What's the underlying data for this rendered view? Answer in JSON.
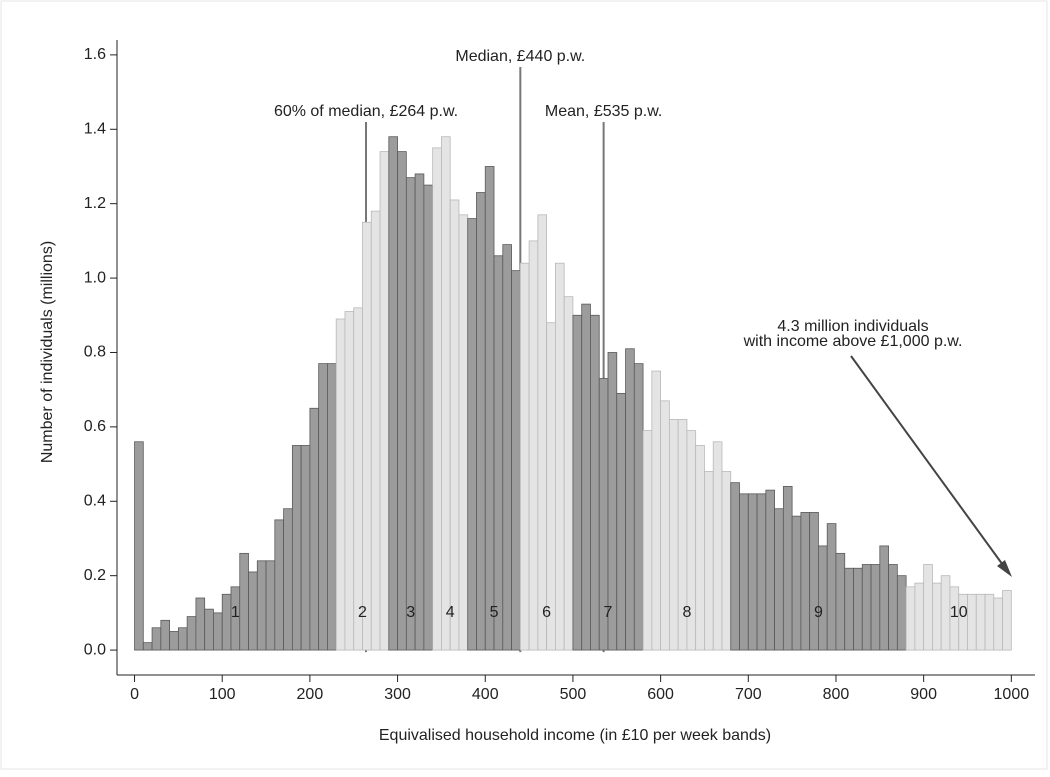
{
  "chart_data": {
    "type": "histogram",
    "x_label": "Equivalised household income (in £10 per week bands)",
    "y_label": "Number of individuals (millions)",
    "bins": [
      0,
      10,
      20,
      30,
      40,
      50,
      60,
      70,
      80,
      90,
      100,
      110,
      120,
      130,
      140,
      150,
      160,
      170,
      180,
      190,
      200,
      210,
      220,
      230,
      240,
      250,
      260,
      270,
      280,
      290,
      300,
      310,
      320,
      330,
      340,
      350,
      360,
      370,
      380,
      390,
      400,
      410,
      420,
      430,
      440,
      450,
      460,
      470,
      480,
      490,
      500,
      510,
      520,
      530,
      540,
      550,
      560,
      570,
      580,
      590,
      600,
      610,
      620,
      630,
      640,
      650,
      660,
      670,
      680,
      690,
      700,
      710,
      720,
      730,
      740,
      750,
      760,
      770,
      780,
      790,
      800,
      810,
      820,
      830,
      840,
      850,
      860,
      870,
      880,
      890,
      900,
      910,
      920,
      930,
      940,
      950,
      960,
      970,
      980,
      990,
      1000
    ],
    "counts": [
      0.56,
      0.02,
      0.06,
      0.08,
      0.05,
      0.06,
      0.09,
      0.14,
      0.11,
      0.1,
      0.15,
      0.17,
      0.26,
      0.21,
      0.24,
      0.24,
      0.35,
      0.38,
      0.55,
      0.55,
      0.65,
      0.77,
      0.77,
      0.89,
      0.91,
      0.92,
      1.15,
      1.18,
      1.34,
      1.38,
      1.34,
      1.27,
      1.28,
      1.25,
      1.35,
      1.38,
      1.21,
      1.17,
      1.16,
      1.23,
      1.3,
      1.06,
      1.09,
      1.02,
      1.04,
      1.1,
      1.17,
      0.88,
      1.04,
      0.95,
      0.9,
      0.93,
      0.9,
      0.73,
      0.8,
      0.69,
      0.81,
      0.77,
      0.59,
      0.75,
      0.67,
      0.62,
      0.62,
      0.59,
      0.55,
      0.48,
      0.56,
      0.48,
      0.45,
      0.42,
      0.42,
      0.42,
      0.43,
      0.38,
      0.44,
      0.36,
      0.37,
      0.37,
      0.28,
      0.34,
      0.26,
      0.22,
      0.22,
      0.23,
      0.23,
      0.28,
      0.23,
      0.2,
      0.17,
      0.18,
      0.23,
      0.18,
      0.2,
      0.17,
      0.15,
      0.15,
      0.15,
      0.15,
      0.14,
      0.16
    ],
    "bar_colors": [
      "#9c9c9c",
      "#9c9c9c",
      "#9c9c9c",
      "#9c9c9c",
      "#9c9c9c",
      "#9c9c9c",
      "#9c9c9c",
      "#9c9c9c",
      "#9c9c9c",
      "#9c9c9c",
      "#9c9c9c",
      "#9c9c9c",
      "#9c9c9c",
      "#9c9c9c",
      "#9c9c9c",
      "#9c9c9c",
      "#9c9c9c",
      "#9c9c9c",
      "#9c9c9c",
      "#9c9c9c",
      "#9c9c9c",
      "#9c9c9c",
      "#9c9c9c",
      "#e4e4e4",
      "#e4e4e4",
      "#e4e4e4",
      "#e4e4e4",
      "#e4e4e4",
      "#e4e4e4",
      "#9c9c9c",
      "#9c9c9c",
      "#9c9c9c",
      "#9c9c9c",
      "#9c9c9c",
      "#e4e4e4",
      "#e4e4e4",
      "#e4e4e4",
      "#e4e4e4",
      "#9c9c9c",
      "#9c9c9c",
      "#9c9c9c",
      "#9c9c9c",
      "#9c9c9c",
      "#9c9c9c",
      "#e4e4e4",
      "#e4e4e4",
      "#e4e4e4",
      "#e4e4e4",
      "#e4e4e4",
      "#e4e4e4",
      "#9c9c9c",
      "#9c9c9c",
      "#9c9c9c",
      "#9c9c9c",
      "#9c9c9c",
      "#9c9c9c",
      "#9c9c9c",
      "#9c9c9c",
      "#e4e4e4",
      "#e4e4e4",
      "#e4e4e4",
      "#e4e4e4",
      "#e4e4e4",
      "#e4e4e4",
      "#e4e4e4",
      "#e4e4e4",
      "#e4e4e4",
      "#e4e4e4",
      "#9c9c9c",
      "#9c9c9c",
      "#9c9c9c",
      "#9c9c9c",
      "#9c9c9c",
      "#9c9c9c",
      "#9c9c9c",
      "#9c9c9c",
      "#9c9c9c",
      "#9c9c9c",
      "#9c9c9c",
      "#9c9c9c",
      "#9c9c9c",
      "#9c9c9c",
      "#9c9c9c",
      "#9c9c9c",
      "#9c9c9c",
      "#9c9c9c",
      "#9c9c9c",
      "#9c9c9c",
      "#e4e4e4",
      "#e4e4e4",
      "#e4e4e4",
      "#e4e4e4",
      "#e4e4e4",
      "#e4e4e4",
      "#e4e4e4",
      "#e4e4e4",
      "#e4e4e4",
      "#e4e4e4",
      "#e4e4e4",
      "#e4e4e4"
    ],
    "decile_labels": [
      "1",
      "2",
      "3",
      "4",
      "5",
      "6",
      "7",
      "8",
      "9",
      "10"
    ],
    "annotations": [
      {
        "label": "60% of median, £264 p.w.",
        "x": 264
      },
      {
        "label": "Median, £440 p.w.",
        "x": 440
      },
      {
        "label": "Mean, £535 p.w.",
        "x": 535
      }
    ],
    "note": [
      "4.3 million individuals",
      "with income above £1,000 p.w."
    ],
    "xlim": [
      -20,
      1027
    ],
    "ylim": [
      -0.067,
      1.64
    ],
    "xticks": [
      0,
      100,
      200,
      300,
      400,
      500,
      600,
      700,
      800,
      900,
      1000
    ],
    "yticks": [
      {
        "value": 0,
        "label": "0.0"
      },
      {
        "value": 0.2,
        "label": "0.2"
      },
      {
        "value": 0.4,
        "label": "0.4"
      },
      {
        "value": 0.6,
        "label": "0.6"
      },
      {
        "value": 0.8,
        "label": "0.8"
      },
      {
        "value": 1,
        "label": "1.0"
      },
      {
        "value": 1.2,
        "label": "1.2"
      },
      {
        "value": 1.4,
        "label": "1.4"
      },
      {
        "value": 1.6,
        "label": "1.6"
      }
    ]
  }
}
